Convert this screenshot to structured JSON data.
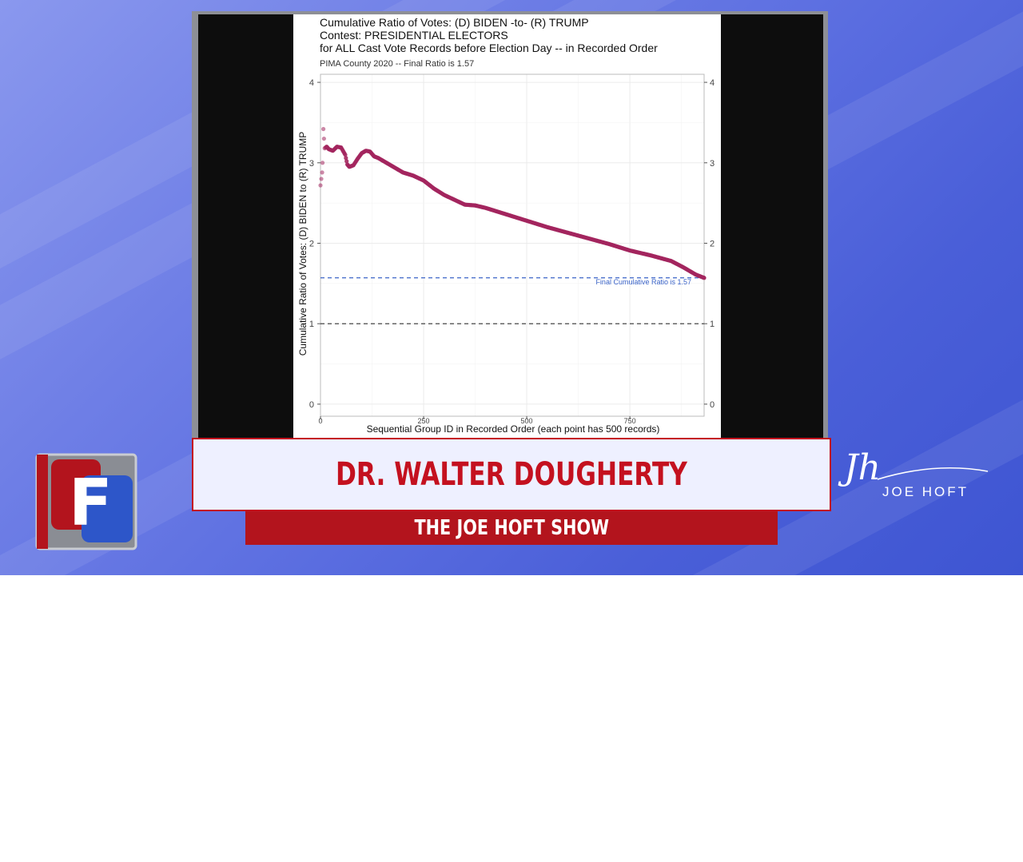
{
  "chart_data": {
    "type": "scatter",
    "title_lines": [
      "Cumulative Ratio of Votes:  (D) BIDEN -to- (R) TRUMP",
      "Contest:  PRESIDENTIAL ELECTORS",
      "for ALL Cast Vote Records before Election Day -- in Recorded Order"
    ],
    "subtitle": "PIMA County 2020 --  Final Ratio is 1.57",
    "xlabel": "Sequential Group ID in Recorded Order (each point has 500 records)",
    "ylabel": "Cumulative Ratio of Votes:   (D) BIDEN  to  (R) TRUMP",
    "xlim": [
      0,
      930
    ],
    "ylim": [
      -0.15,
      4.1
    ],
    "x_ticks": [
      "0",
      "250",
      "500",
      "750"
    ],
    "x_tick_values": [
      0,
      250,
      500,
      750
    ],
    "y_ticks": [
      "0",
      "1",
      "2",
      "3",
      "4"
    ],
    "y_tick_values": [
      0,
      1,
      2,
      3,
      4
    ],
    "right_axis_ticks": [
      "0",
      "1",
      "2",
      "3",
      "4"
    ],
    "reference_lines": [
      {
        "y": 1.57,
        "style": "dashed",
        "color": "#3a63c8",
        "label": "Final Cumulative Ratio is 1.57"
      },
      {
        "y": 1.0,
        "style": "dashed",
        "color": "#333333",
        "label": ""
      }
    ],
    "series_color": "#a3265e",
    "series": [
      {
        "x": [
          0,
          2,
          4,
          5,
          7,
          10,
          15,
          20,
          30,
          40,
          50,
          60,
          65,
          70,
          80,
          90,
          100,
          110,
          120,
          130,
          140,
          150,
          170,
          200,
          225,
          250,
          275,
          300,
          350,
          375,
          400,
          450,
          500,
          550,
          600,
          650,
          700,
          750,
          800,
          850,
          880,
          910,
          930
        ],
        "y": [
          2.72,
          2.8,
          2.88,
          3.0,
          3.42,
          3.18,
          3.2,
          3.17,
          3.15,
          3.2,
          3.19,
          3.1,
          2.98,
          2.95,
          2.97,
          3.05,
          3.12,
          3.15,
          3.14,
          3.08,
          3.06,
          3.03,
          2.97,
          2.88,
          2.84,
          2.78,
          2.68,
          2.6,
          2.48,
          2.47,
          2.44,
          2.36,
          2.28,
          2.2,
          2.13,
          2.06,
          1.99,
          1.91,
          1.85,
          1.78,
          1.7,
          1.61,
          1.57
        ]
      }
    ]
  },
  "lower_third": {
    "name": "DR. WALTER DOUGHERTY",
    "show": "THE JOE HOFT SHOW"
  },
  "branding": {
    "right_script": "Jh",
    "right_text": "JOE HOFT",
    "left_logo_letter": "F",
    "accent_red": "#c4111f",
    "accent_blue": "#2d56c9"
  }
}
